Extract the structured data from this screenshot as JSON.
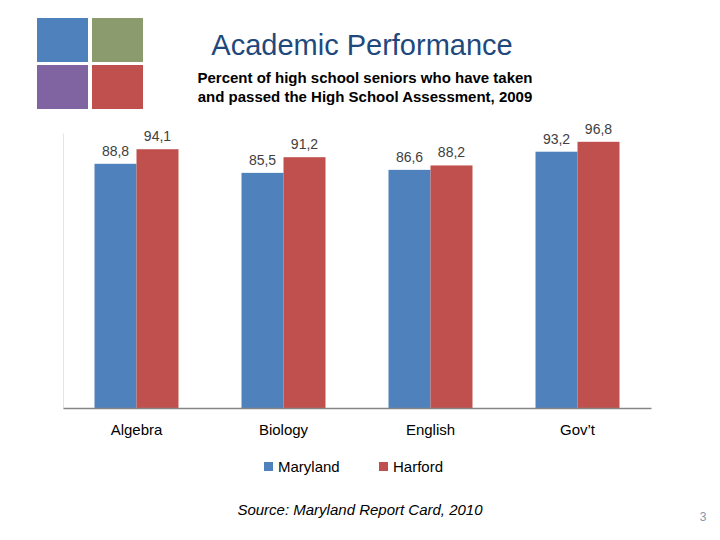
{
  "chart_data": {
    "type": "bar",
    "title": "Academic Performance",
    "subtitle": [
      "Percent of high school seniors who have taken",
      "and passed the High School Assessment, 2009"
    ],
    "categories": [
      "Algebra",
      "Biology",
      "English",
      "Gov’t"
    ],
    "series": [
      {
        "name": "Maryland",
        "color": "#4f81bd",
        "values": [
          88.8,
          85.5,
          86.6,
          93.2
        ],
        "value_labels": [
          "88,8",
          "85,5",
          "86,6",
          "93,2"
        ]
      },
      {
        "name": "Harford",
        "color": "#c0504d",
        "values": [
          94.1,
          91.2,
          88.2,
          96.8
        ],
        "value_labels": [
          "94,1",
          "91,2",
          "88,2",
          "96,8"
        ]
      }
    ],
    "ylim": [
      0,
      100
    ],
    "data_labels": true,
    "tick_labels": "x",
    "legend": "bottom",
    "annotations": [
      "Source: Maryland Report Card, 2010",
      "3"
    ]
  }
}
